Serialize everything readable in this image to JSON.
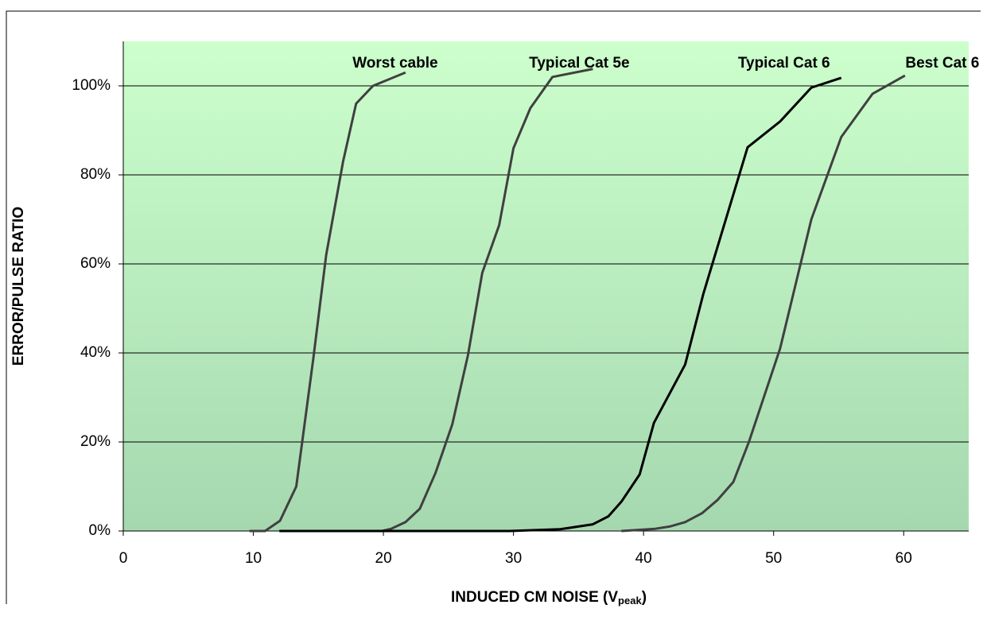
{
  "chart_data": {
    "type": "line",
    "ylabel": "ERROR/PULSE RATIO",
    "xlabel": {
      "text": "INDUCED CM NOISE (V",
      "sub": "peak",
      "close": ")"
    },
    "xlim": [
      0,
      65
    ],
    "xticks": [
      0,
      10,
      20,
      30,
      40,
      50,
      60
    ],
    "ylim": [
      0,
      110
    ],
    "yticks": [
      {
        "value": 0,
        "label": "0%"
      },
      {
        "value": 20,
        "label": "20%"
      },
      {
        "value": 40,
        "label": "40%"
      },
      {
        "value": 60,
        "label": "60%"
      },
      {
        "value": 80,
        "label": "80%"
      },
      {
        "value": 100,
        "label": "100%"
      }
    ],
    "grid": true,
    "series": [
      {
        "name": "Worst cable",
        "color": "#404040",
        "x": [
          9.7,
          10.9,
          12.05,
          13.3,
          14.6,
          15.6,
          16.9,
          17.9,
          19.2,
          21.7
        ],
        "values": [
          0,
          0,
          2.3,
          10,
          38.5,
          62,
          83,
          96,
          100,
          103
        ]
      },
      {
        "name": "Typical Cat 5e",
        "color": "#404040",
        "x": [
          19.9,
          20.6,
          21.7,
          22.8,
          24,
          25.3,
          26.5,
          27.6,
          28.9,
          30,
          31.3,
          33,
          36.1
        ],
        "values": [
          0,
          0.5,
          2,
          5,
          13,
          24,
          39.5,
          58,
          68.7,
          86,
          95,
          102,
          103.8
        ]
      },
      {
        "name": "Typical Cat 6",
        "color": "#000000",
        "x": [
          12,
          29.7,
          33.6,
          36.1,
          37.3,
          38.3,
          39.7,
          40.8,
          43.2,
          44.6,
          48,
          50.5,
          52.9,
          55.2
        ],
        "values": [
          0,
          0,
          0.4,
          1.5,
          3.3,
          6.6,
          12.7,
          24.3,
          37.4,
          53.3,
          86.2,
          92,
          99.6,
          101.8
        ]
      },
      {
        "name": "Best Cat 6",
        "color": "#404040",
        "x": [
          38.3,
          40.9,
          42,
          43.2,
          44.5,
          45.7,
          46.9,
          48.1,
          50.5,
          52.9,
          55.2,
          57.6,
          60.1
        ],
        "values": [
          0,
          0.5,
          1,
          2,
          4,
          7,
          11,
          20,
          41,
          70,
          88.5,
          98.2,
          102.3
        ]
      }
    ]
  }
}
